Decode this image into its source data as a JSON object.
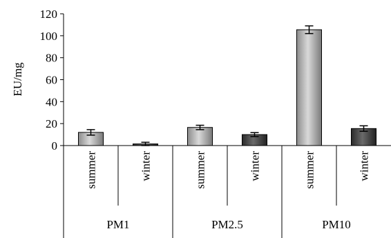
{
  "chart_data": {
    "type": "bar",
    "title": "",
    "ylabel": "EU/mg",
    "xlabel": "",
    "ylim": [
      0,
      120
    ],
    "yticks": [
      0,
      20,
      40,
      60,
      80,
      100,
      120
    ],
    "grid": false,
    "legend": "none",
    "groups": [
      {
        "label": "PM1",
        "bars": [
          {
            "label": "summer",
            "value": 12,
            "error": 2.5
          },
          {
            "label": "winter",
            "value": 1.5,
            "error": 1.5
          }
        ]
      },
      {
        "label": "PM2.5",
        "bars": [
          {
            "label": "summer",
            "value": 16.5,
            "error": 2
          },
          {
            "label": "winter",
            "value": 10,
            "error": 1.8
          }
        ]
      },
      {
        "label": "PM10",
        "bars": [
          {
            "label": "summer",
            "value": 105.5,
            "error": 3.5
          },
          {
            "label": "winter",
            "value": 15.5,
            "error": 2.5
          }
        ]
      }
    ],
    "colors": {
      "summer": "#a9a9a9",
      "winter": "#3f3f3f"
    }
  }
}
